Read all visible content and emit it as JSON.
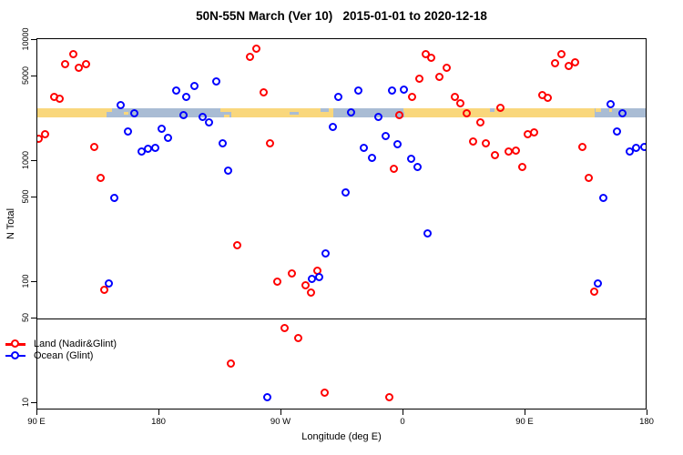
{
  "title": "50N-55N March (Ver 10)   2015-01-01 to 2020-12-18",
  "legend": {
    "items": [
      {
        "label": "Land (Nadir&Glint)",
        "series": "land"
      },
      {
        "label": "Ocean (Glint)",
        "series": "ocean"
      }
    ]
  },
  "chart_data": {
    "type": "scatter",
    "title": "50N-55N March (Ver 10)   2015-01-01 to 2020-12-18",
    "xlabel": "Longitude (deg E)",
    "ylabel": "N Total",
    "x_axis": {
      "range": [
        90,
        540
      ],
      "ticks": [
        {
          "v": 90,
          "label": "90 E"
        },
        {
          "v": 180,
          "label": "180"
        },
        {
          "v": 270,
          "label": "90 W"
        },
        {
          "v": 360,
          "label": "0"
        },
        {
          "v": 450,
          "label": "90 E"
        },
        {
          "v": 540,
          "label": "180"
        }
      ]
    },
    "y_axis": {
      "scale": "log",
      "range": [
        10,
        10000
      ],
      "ticks": [
        {
          "v": 10000,
          "label": "10000"
        },
        {
          "v": 5000,
          "label": "5000"
        },
        {
          "v": 1000,
          "label": "1000"
        },
        {
          "v": 500,
          "label": "500"
        },
        {
          "v": 100,
          "label": "100"
        },
        {
          "v": 50,
          "label": "50"
        },
        {
          "v": 10,
          "label": "10"
        }
      ]
    },
    "reference_line_y": 50,
    "grid": false,
    "legend_position": "bottom-left",
    "series": [
      {
        "name": "Land (Nadir&Glint)",
        "color": "#FF0000",
        "points": [
          [
            117,
            7600
          ],
          [
            111,
            6300
          ],
          [
            121,
            5900
          ],
          [
            126,
            6300
          ],
          [
            103,
            3400
          ],
          [
            107,
            3250
          ],
          [
            96,
            1650
          ],
          [
            91,
            1510
          ],
          [
            132,
            1300
          ],
          [
            137,
            720
          ],
          [
            140,
            85
          ],
          [
            247,
            7200
          ],
          [
            252,
            8400
          ],
          [
            257,
            3700
          ],
          [
            262,
            1400
          ],
          [
            238,
            200
          ],
          [
            233,
            21
          ],
          [
            273,
            41
          ],
          [
            283,
            34
          ],
          [
            267,
            99
          ],
          [
            278,
            116
          ],
          [
            288,
            93
          ],
          [
            292,
            81
          ],
          [
            297,
            123
          ],
          [
            302,
            12
          ],
          [
            350,
            11
          ],
          [
            353,
            850
          ],
          [
            357,
            2380
          ],
          [
            367,
            3400
          ],
          [
            372,
            4800
          ],
          [
            377,
            7600
          ],
          [
            381,
            7100
          ],
          [
            387,
            4900
          ],
          [
            392,
            5900
          ],
          [
            398,
            3400
          ],
          [
            402,
            3000
          ],
          [
            407,
            2470
          ],
          [
            412,
            1450
          ],
          [
            417,
            2080
          ],
          [
            421,
            1390
          ],
          [
            428,
            1110
          ],
          [
            432,
            2730
          ],
          [
            438,
            1190
          ],
          [
            443,
            1210
          ],
          [
            448,
            890
          ],
          [
            452,
            1650
          ],
          [
            457,
            1700
          ],
          [
            463,
            3500
          ],
          [
            467,
            3300
          ],
          [
            472,
            6400
          ],
          [
            477,
            7600
          ],
          [
            482,
            6050
          ],
          [
            487,
            6500
          ],
          [
            492,
            1310
          ],
          [
            497,
            720
          ],
          [
            501,
            83
          ]
        ]
      },
      {
        "name": "Ocean (Glint)",
        "color": "#0000FF",
        "points": [
          [
            152,
            2900
          ],
          [
            162,
            2450
          ],
          [
            193,
            3800
          ],
          [
            200,
            3400
          ],
          [
            206,
            4150
          ],
          [
            222,
            4500
          ],
          [
            198,
            2400
          ],
          [
            212,
            2300
          ],
          [
            217,
            2060
          ],
          [
            157,
            1730
          ],
          [
            182,
            1850
          ],
          [
            187,
            1540
          ],
          [
            167,
            1190
          ],
          [
            172,
            1250
          ],
          [
            177,
            1280
          ],
          [
            227,
            1400
          ],
          [
            231,
            830
          ],
          [
            147,
            490
          ],
          [
            143,
            96
          ],
          [
            260,
            11
          ],
          [
            312,
            3400
          ],
          [
            327,
            3840
          ],
          [
            352,
            3800
          ],
          [
            361,
            3880
          ],
          [
            322,
            2530
          ],
          [
            342,
            2290
          ],
          [
            308,
            1900
          ],
          [
            347,
            1590
          ],
          [
            331,
            1270
          ],
          [
            337,
            1050
          ],
          [
            356,
            1380
          ],
          [
            366,
            1030
          ],
          [
            371,
            890
          ],
          [
            318,
            550
          ],
          [
            378,
            250
          ],
          [
            303,
            170
          ],
          [
            293,
            105
          ],
          [
            298,
            109
          ],
          [
            513,
            2940
          ],
          [
            522,
            2450
          ],
          [
            518,
            1730
          ],
          [
            527,
            1200
          ],
          [
            532,
            1270
          ],
          [
            538,
            1310
          ],
          [
            508,
            490
          ],
          [
            504,
            96
          ]
        ]
      }
    ],
    "land_ocean_strip": {
      "description": "map strip of land vs ocean along 50N-55N",
      "n_range": [
        2290,
        2730
      ],
      "land_color": "#F9D77C",
      "ocean_color": "#A9BCD4",
      "segments": [
        {
          "type": "land",
          "from": 90,
          "to": 141
        },
        {
          "type": "ocean",
          "from": 141,
          "to": 233
        },
        {
          "type": "land",
          "from": 233,
          "to": 308
        },
        {
          "type": "ocean",
          "from": 308,
          "to": 361
        },
        {
          "type": "land",
          "from": 361,
          "to": 501
        },
        {
          "type": "ocean",
          "from": 501,
          "to": 540
        }
      ],
      "speckles": [
        {
          "type": "land",
          "from": 141,
          "to": 145,
          "pos": "top"
        },
        {
          "type": "land",
          "from": 154,
          "to": 157,
          "pos": "mid"
        },
        {
          "type": "land",
          "from": 225,
          "to": 233,
          "pos": "top"
        },
        {
          "type": "land",
          "from": 228,
          "to": 232,
          "pos": "bottom"
        },
        {
          "type": "ocean",
          "from": 276,
          "to": 283,
          "pos": "mid"
        },
        {
          "type": "ocean",
          "from": 299,
          "to": 305,
          "pos": "top"
        },
        {
          "type": "land",
          "from": 300,
          "to": 303,
          "pos": "bottom"
        },
        {
          "type": "land",
          "from": 360,
          "to": 364,
          "pos": "top"
        },
        {
          "type": "ocean",
          "from": 424,
          "to": 427,
          "pos": "top"
        },
        {
          "type": "land",
          "from": 502,
          "to": 506,
          "pos": "top"
        },
        {
          "type": "land",
          "from": 512,
          "to": 514,
          "pos": "top"
        }
      ]
    }
  }
}
